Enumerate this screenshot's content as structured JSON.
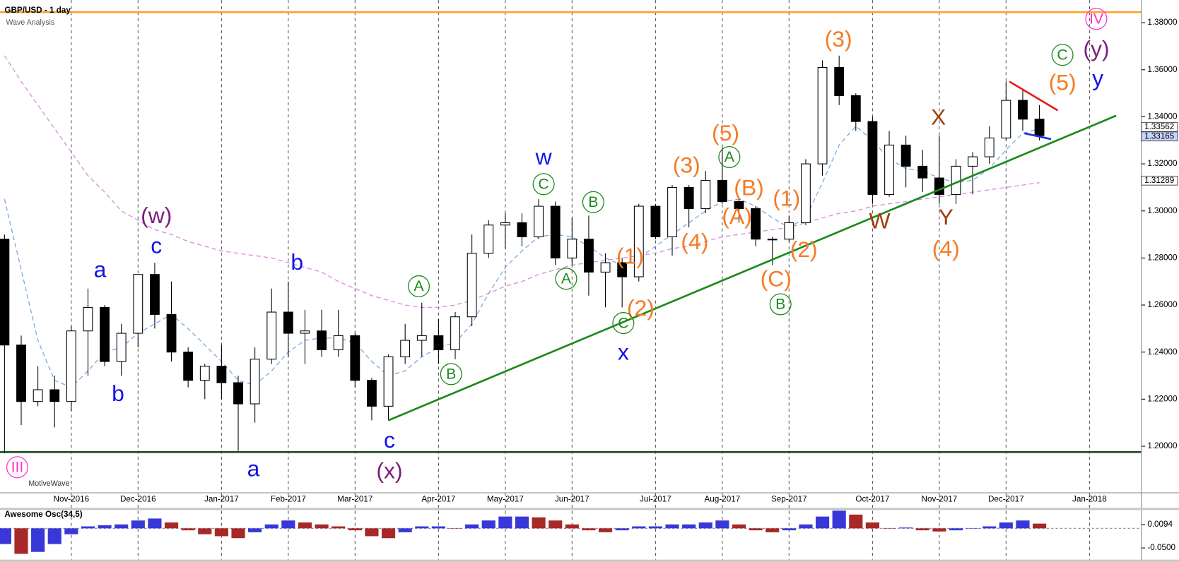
{
  "chart_data": {
    "type": "candlestick",
    "title": "GBP/USD - 1 day",
    "subtitle": "Wave Analysis",
    "watermark": "MotiveWave",
    "categories": [
      null,
      null,
      null,
      null,
      "Nov-2016",
      null,
      null,
      null,
      "Dec-2016",
      null,
      null,
      null,
      null,
      "Jan-2017",
      null,
      null,
      null,
      "Feb-2017",
      null,
      null,
      null,
      "Mar-2017",
      null,
      null,
      null,
      null,
      "Apr-2017",
      null,
      null,
      null,
      "May-2017",
      null,
      null,
      null,
      "Jun-2017",
      null,
      null,
      null,
      null,
      "Jul-2017",
      null,
      null,
      null,
      "Aug-2017",
      null,
      null,
      null,
      "Sep-2017",
      null,
      null,
      null,
      null,
      "Oct-2017",
      null,
      null,
      null,
      "Nov-2017",
      null,
      null,
      null,
      "Dec-2017",
      null,
      null,
      null,
      null,
      "Jan-2018"
    ],
    "open": [
      1.288,
      1.243,
      1.219,
      1.224,
      1.219,
      1.249,
      1.259,
      1.236,
      1.248,
      1.273,
      1.256,
      1.24,
      1.228,
      1.234,
      1.227,
      1.218,
      1.237,
      1.257,
      1.248,
      1.249,
      1.241,
      1.247,
      1.228,
      1.217,
      1.238,
      1.245,
      1.247,
      1.241,
      1.255,
      1.282,
      1.294,
      1.295,
      1.289,
      1.302,
      1.28,
      1.288,
      1.274,
      1.278,
      1.272,
      1.302,
      1.289,
      1.31,
      1.301,
      1.313,
      1.304,
      1.301,
      1.288,
      1.288,
      1.295,
      1.32,
      1.361,
      1.349,
      1.338,
      1.307,
      1.328,
      1.319,
      1.314,
      1.307,
      1.319,
      1.323,
      1.331,
      1.347,
      1.339,
      null,
      null,
      null
    ],
    "high": [
      1.29,
      1.247,
      1.234,
      1.23,
      1.251,
      1.267,
      1.26,
      1.252,
      1.273,
      1.278,
      1.27,
      1.242,
      1.235,
      1.243,
      1.23,
      1.242,
      1.267,
      1.27,
      1.258,
      1.258,
      1.258,
      1.248,
      1.229,
      1.239,
      1.252,
      1.261,
      1.254,
      1.257,
      1.29,
      1.296,
      1.299,
      1.299,
      1.305,
      1.304,
      1.297,
      1.298,
      1.282,
      1.28,
      1.303,
      1.303,
      1.311,
      1.311,
      1.317,
      1.327,
      1.305,
      1.302,
      1.289,
      1.298,
      1.322,
      1.364,
      1.366,
      1.35,
      1.34,
      1.334,
      1.332,
      1.326,
      1.332,
      1.322,
      1.325,
      1.336,
      1.355,
      1.352,
      1.345,
      null,
      null,
      null
    ],
    "low": [
      1.197,
      1.209,
      1.217,
      1.208,
      1.215,
      1.23,
      1.234,
      1.23,
      1.242,
      1.25,
      1.236,
      1.225,
      1.22,
      1.22,
      1.198,
      1.21,
      1.235,
      1.238,
      1.235,
      1.238,
      1.238,
      1.225,
      1.211,
      1.211,
      1.235,
      1.238,
      1.235,
      1.237,
      1.251,
      1.28,
      1.284,
      1.285,
      1.288,
      1.277,
      1.277,
      1.264,
      1.259,
      1.259,
      1.27,
      1.288,
      1.281,
      1.293,
      1.299,
      1.303,
      1.295,
      1.285,
      1.277,
      1.287,
      1.294,
      1.315,
      1.345,
      1.334,
      1.303,
      1.306,
      1.31,
      1.308,
      1.303,
      1.303,
      1.307,
      1.32,
      1.33,
      1.334,
      1.33,
      null,
      null,
      null
    ],
    "close": [
      1.243,
      1.219,
      1.224,
      1.219,
      1.249,
      1.259,
      1.236,
      1.248,
      1.273,
      1.256,
      1.24,
      1.228,
      1.234,
      1.227,
      1.218,
      1.237,
      1.257,
      1.248,
      1.249,
      1.241,
      1.247,
      1.228,
      1.217,
      1.238,
      1.245,
      1.247,
      1.241,
      1.255,
      1.282,
      1.294,
      1.295,
      1.289,
      1.302,
      1.28,
      1.288,
      1.274,
      1.278,
      1.272,
      1.302,
      1.289,
      1.31,
      1.301,
      1.313,
      1.304,
      1.301,
      1.288,
      1.288,
      1.295,
      1.32,
      1.361,
      1.349,
      1.338,
      1.307,
      1.328,
      1.319,
      1.314,
      1.307,
      1.319,
      1.323,
      1.331,
      1.347,
      1.339,
      1.332,
      null,
      null,
      null
    ],
    "up_fill": "#ffffff",
    "down_fill": "#000000",
    "moving_averages": [
      {
        "color": "#7aa6e8",
        "values": [
          1.305,
          1.275,
          1.245,
          1.228,
          1.225,
          1.232,
          1.24,
          1.242,
          1.248,
          1.252,
          1.256,
          1.25,
          1.243,
          1.236,
          1.228,
          1.226,
          1.232,
          1.24,
          1.245,
          1.246,
          1.246,
          1.244,
          1.236,
          1.23,
          1.232,
          1.238,
          1.242,
          1.244,
          1.252,
          1.265,
          1.276,
          1.283,
          1.289,
          1.29,
          1.289,
          1.285,
          1.28,
          1.277,
          1.28,
          1.285,
          1.29,
          1.295,
          1.3,
          1.304,
          1.305,
          1.302,
          1.297,
          1.293,
          1.297,
          1.312,
          1.328,
          1.336,
          1.33,
          1.322,
          1.318,
          1.317,
          1.314,
          1.312,
          1.313,
          1.318,
          1.326,
          1.333,
          1.335,
          null,
          null,
          null
        ]
      },
      {
        "color": "#d98ad9",
        "values": [
          1.366,
          1.355,
          1.345,
          1.335,
          1.325,
          1.315,
          1.308,
          1.3,
          1.296,
          1.292,
          1.29,
          1.287,
          1.285,
          1.283,
          1.282,
          1.281,
          1.28,
          1.278,
          1.276,
          1.274,
          1.27,
          1.267,
          1.264,
          1.262,
          1.26,
          1.259,
          1.259,
          1.26,
          1.262,
          1.265,
          1.268,
          1.27,
          1.273,
          1.275,
          1.277,
          1.278,
          1.279,
          1.28,
          1.281,
          1.282,
          1.284,
          1.285,
          1.287,
          1.289,
          1.29,
          1.291,
          1.292,
          1.293,
          1.295,
          1.297,
          1.299,
          1.3,
          1.302,
          1.303,
          1.304,
          1.305,
          1.306,
          1.307,
          1.308,
          1.309,
          1.31,
          1.311,
          1.312,
          null,
          null,
          null
        ]
      }
    ],
    "ylim": [
      1.1802,
      1.3896
    ],
    "yticks": [
      {
        "value": 1.2,
        "label": "1.20000"
      },
      {
        "value": 1.22,
        "label": "1.22000"
      },
      {
        "value": 1.24,
        "label": "1.24000"
      },
      {
        "value": 1.26,
        "label": "1.26000"
      },
      {
        "value": 1.28,
        "label": "1.28000"
      },
      {
        "value": 1.3,
        "label": "1.30000"
      },
      {
        "value": 1.32,
        "label": "1.32000"
      },
      {
        "value": 1.34,
        "label": "1.34000"
      },
      {
        "value": 1.36,
        "label": "1.36000"
      },
      {
        "value": 1.38,
        "label": "1.38000"
      }
    ],
    "price_labels": [
      {
        "value": 1.33562,
        "label": "1.33562",
        "color": "#ffffff"
      },
      {
        "value": 1.33165,
        "label": "1.33165",
        "color": "#c8d4ff"
      },
      {
        "value": 1.31289,
        "label": "1.31289",
        "color": "#ffffff"
      }
    ],
    "hlines": [
      {
        "value": 1.3845,
        "color": "#ffa126"
      },
      {
        "value": 1.1975,
        "color": "#1d4d1d"
      }
    ],
    "trendlines": [
      {
        "color": "#1a8a1a",
        "x": [
          23,
          66.6
        ],
        "y": [
          1.211,
          1.3405
        ]
      },
      {
        "color": "#ee1c1c",
        "x": [
          60.2,
          63.1
        ],
        "y": [
          1.355,
          1.3427
        ]
      },
      {
        "color": "#1b2fe0",
        "x": [
          61.1,
          62.7
        ],
        "y": [
          1.333,
          1.3305
        ]
      }
    ],
    "wave_labels": [
      {
        "text": "(w)",
        "color": "#7b1f7b",
        "circled": false
      },
      {
        "text": "c",
        "color": "#1414e6",
        "circled": false
      },
      {
        "text": "a",
        "color": "#1414e6",
        "circled": false
      },
      {
        "text": "b",
        "color": "#1414e6",
        "circled": false
      },
      {
        "text": "b",
        "color": "#1414e6",
        "circled": false
      },
      {
        "text": "a",
        "color": "#1414e6",
        "circled": false
      },
      {
        "text": "c",
        "color": "#1414e6",
        "circled": false
      },
      {
        "text": "(x)",
        "color": "#7b1f7b",
        "circled": false
      },
      {
        "text": "A",
        "color": "#1a8a1a",
        "circled": true
      },
      {
        "text": "B",
        "color": "#1a8a1a",
        "circled": true
      },
      {
        "text": "C",
        "color": "#1a8a1a",
        "circled": true
      },
      {
        "text": "w",
        "color": "#1414e6",
        "circled": false
      },
      {
        "text": "A",
        "color": "#1a8a1a",
        "circled": true
      },
      {
        "text": "B",
        "color": "#1a8a1a",
        "circled": true
      },
      {
        "text": "(1)",
        "color": "#f57b25",
        "circled": false
      },
      {
        "text": "(2)",
        "color": "#f57b25",
        "circled": false
      },
      {
        "text": "C",
        "color": "#1a8a1a",
        "circled": true
      },
      {
        "text": "x",
        "color": "#1414e6",
        "circled": false
      },
      {
        "text": "(3)",
        "color": "#f57b25",
        "circled": false
      },
      {
        "text": "(4)",
        "color": "#f57b25",
        "circled": false
      },
      {
        "text": "(5)",
        "color": "#f57b25",
        "circled": false
      },
      {
        "text": "A",
        "color": "#1a8a1a",
        "circled": true
      },
      {
        "text": "(B)",
        "color": "#f57b25",
        "circled": false
      },
      {
        "text": "(A)",
        "color": "#f57b25",
        "circled": false
      },
      {
        "text": "(1)",
        "color": "#f57b25",
        "circled": false
      },
      {
        "text": "(2)",
        "color": "#f57b25",
        "circled": false
      },
      {
        "text": "(C)",
        "color": "#f57b25",
        "circled": false
      },
      {
        "text": "B",
        "color": "#1a8a1a",
        "circled": true
      },
      {
        "text": "(3)",
        "color": "#f57b25",
        "circled": false
      },
      {
        "text": "W",
        "color": "#a0400e",
        "circled": false
      },
      {
        "text": "X",
        "color": "#a0400e",
        "circled": false
      },
      {
        "text": "Y",
        "color": "#a0400e",
        "circled": false
      },
      {
        "text": "(4)",
        "color": "#f57b25",
        "circled": false
      },
      {
        "text": "C",
        "color": "#1a8a1a",
        "circled": true
      },
      {
        "text": "(y)",
        "color": "#7b1f7b",
        "circled": false
      },
      {
        "text": "y",
        "color": "#1414e6",
        "circled": false
      },
      {
        "text": "(5)",
        "color": "#f57b25",
        "circled": false
      },
      {
        "text": "IV",
        "color": "#ff33cc",
        "circled": true
      },
      {
        "text": "III",
        "color": "#ff33cc",
        "circled": true
      }
    ],
    "oscillator": {
      "title": "Awesome Osc(34,5)",
      "up_color": "#3838d8",
      "down_color": "#a82828",
      "values": [
        -0.04,
        -0.065,
        -0.06,
        -0.04,
        -0.015,
        0.005,
        0.008,
        0.01,
        0.02,
        0.025,
        0.015,
        -0.005,
        -0.015,
        -0.02,
        -0.025,
        -0.01,
        0.01,
        0.02,
        0.015,
        0.01,
        0.005,
        -0.005,
        -0.02,
        -0.025,
        -0.01,
        0.005,
        0.005,
        0.0,
        0.01,
        0.02,
        0.03,
        0.03,
        0.028,
        0.02,
        0.01,
        -0.005,
        -0.01,
        -0.005,
        0.005,
        0.005,
        0.01,
        0.01,
        0.015,
        0.02,
        0.01,
        -0.005,
        -0.01,
        -0.005,
        0.01,
        0.03,
        0.045,
        0.035,
        0.015,
        0.0,
        0.002,
        -0.005,
        -0.008,
        -0.005,
        0.0,
        0.005,
        0.015,
        0.02,
        0.012,
        null,
        null,
        null
      ],
      "ylim": [
        -0.0797,
        0.0465
      ],
      "yticks": [
        0.0094,
        {
          "value": -0.05,
          "label": "-0.0500"
        }
      ]
    }
  }
}
